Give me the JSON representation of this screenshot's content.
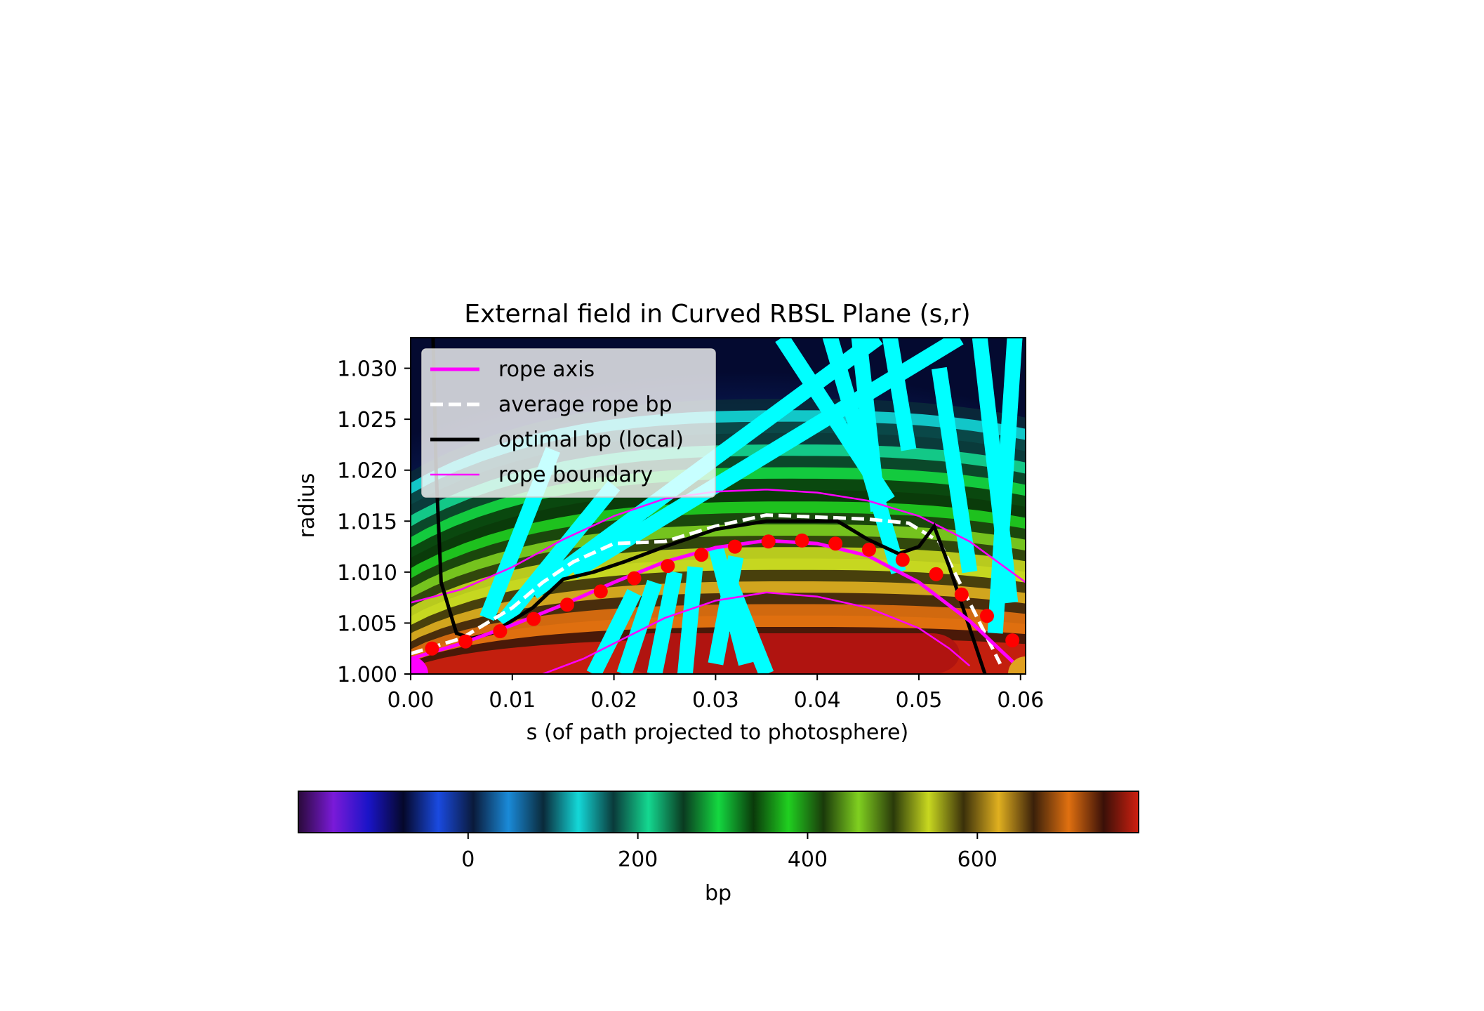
{
  "chart_data": {
    "type": "heatmap",
    "title": "External field in Curved RBSL Plane (s,r)",
    "xlabel": "s (of path projected to photosphere)",
    "ylabel": "radius",
    "xlim": [
      0.0,
      0.0605
    ],
    "ylim": [
      1.0,
      1.033
    ],
    "x_ticks": [
      "0.00",
      "0.01",
      "0.02",
      "0.03",
      "0.04",
      "0.05",
      "0.06"
    ],
    "y_ticks": [
      "1.000",
      "1.005",
      "1.010",
      "1.015",
      "1.020",
      "1.025",
      "1.030"
    ],
    "legend": {
      "placement": "upper-left",
      "entries": [
        {
          "label": "rope axis",
          "color": "#ff00ff",
          "style": "solid-thick"
        },
        {
          "label": "average rope bp",
          "color": "#ffffff",
          "style": "dashed"
        },
        {
          "label": "optimal bp (local)",
          "color": "#000000",
          "style": "solid-thick"
        },
        {
          "label": "rope boundary",
          "color": "#ff00ff",
          "style": "solid-thin"
        }
      ]
    },
    "rope_axis": {
      "x": [
        0.0,
        0.005,
        0.01,
        0.015,
        0.02,
        0.025,
        0.03,
        0.035,
        0.04,
        0.045,
        0.05,
        0.055,
        0.0605
      ],
      "y": [
        1.0015,
        1.003,
        1.0048,
        1.0068,
        1.009,
        1.011,
        1.0124,
        1.0131,
        1.0128,
        1.0116,
        1.009,
        1.0052,
        1.0
      ]
    },
    "rope_markers": {
      "x": [
        0.0021,
        0.0054,
        0.0088,
        0.0121,
        0.0154,
        0.0187,
        0.022,
        0.0253,
        0.0286,
        0.0319,
        0.0352,
        0.0385,
        0.0418,
        0.0451,
        0.0484,
        0.0517,
        0.0542,
        0.0567,
        0.0592
      ],
      "y": [
        1.0025,
        1.0032,
        1.0042,
        1.0054,
        1.0068,
        1.0081,
        1.0094,
        1.0106,
        1.0117,
        1.0125,
        1.013,
        1.0131,
        1.0128,
        1.0122,
        1.0112,
        1.0098,
        1.0078,
        1.0057,
        1.0033
      ],
      "color": "#ff0000"
    },
    "average_rope_bp": {
      "x": [
        0.0,
        0.005,
        0.01,
        0.013,
        0.016,
        0.02,
        0.025,
        0.03,
        0.035,
        0.04,
        0.045,
        0.049,
        0.052,
        0.054,
        0.056,
        0.058
      ],
      "y": [
        1.002,
        1.0035,
        1.0065,
        1.009,
        1.011,
        1.0128,
        1.013,
        1.0145,
        1.0156,
        1.0154,
        1.0152,
        1.0148,
        1.013,
        1.009,
        1.005,
        1.001
      ]
    },
    "optimal_bp_local": {
      "x": [
        0.0022,
        0.0025,
        0.003,
        0.0045,
        0.006,
        0.008,
        0.012,
        0.015,
        0.018,
        0.021,
        0.025,
        0.03,
        0.035,
        0.04,
        0.042,
        0.045,
        0.048,
        0.05,
        0.0515,
        0.053,
        0.055,
        0.0565
      ],
      "y": [
        1.033,
        1.02,
        1.009,
        1.004,
        1.0035,
        1.004,
        1.0065,
        1.0093,
        1.01,
        1.011,
        1.0125,
        1.0142,
        1.015,
        1.015,
        1.015,
        1.0132,
        1.0118,
        1.0125,
        1.0145,
        1.0105,
        1.0045,
        1.0
      ]
    },
    "rope_boundary_upper": {
      "x": [
        0.0,
        0.005,
        0.01,
        0.015,
        0.02,
        0.025,
        0.03,
        0.035,
        0.04,
        0.045,
        0.05,
        0.055,
        0.0605
      ],
      "y": [
        1.007,
        1.0083,
        1.0105,
        1.0132,
        1.0155,
        1.0172,
        1.0179,
        1.0181,
        1.0178,
        1.017,
        1.0155,
        1.013,
        1.009
      ]
    },
    "rope_boundary_lower": {
      "x": [
        0.013,
        0.017,
        0.02,
        0.025,
        0.03,
        0.035,
        0.04,
        0.045,
        0.05,
        0.053,
        0.055
      ],
      "y": [
        1.0,
        1.0015,
        1.003,
        1.0055,
        1.0072,
        1.008,
        1.0076,
        1.0065,
        1.0045,
        1.0025,
        1.0008
      ]
    },
    "colorbar": {
      "label": "bp",
      "range": [
        -200,
        790
      ],
      "ticks": [
        "0",
        "200",
        "400",
        "600"
      ],
      "tick_values": [
        0,
        200,
        400,
        600
      ],
      "colors": [
        "#2a0a3a",
        "#7a1ad8",
        "#1a14c8",
        "#05082a",
        "#1a4ae0",
        "#0a1a3a",
        "#1a8ad8",
        "#0a2a3a",
        "#14d8d8",
        "#0a3a3a",
        "#14d890",
        "#0a3a20",
        "#14d840",
        "#0a3a0a",
        "#20d020",
        "#1a3a0a",
        "#80d020",
        "#2a3a0a",
        "#c8d820",
        "#3a300a",
        "#e0b020",
        "#3a200a",
        "#e07010",
        "#3a1008",
        "#d02010"
      ]
    }
  }
}
